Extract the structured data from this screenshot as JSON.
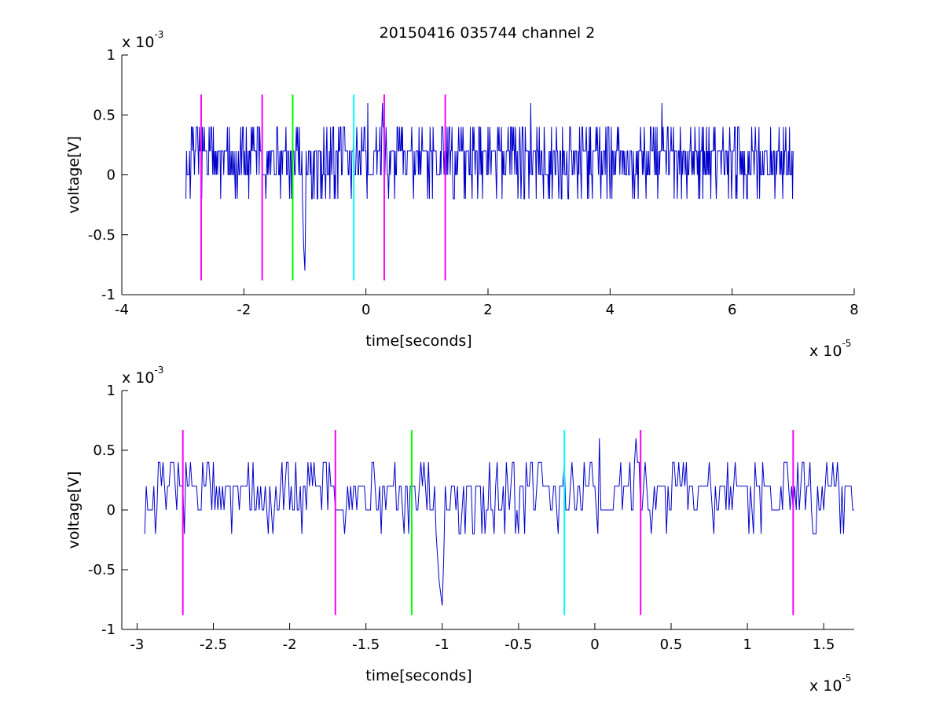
{
  "figure_title": "20150416 035744 channel 2",
  "colors": {
    "signal": "#0000cc",
    "magenta": "#ff00ff",
    "green": "#00ff00",
    "cyan": "#00ffff",
    "axes": "#000000",
    "background": "#ffffff"
  },
  "chart_data": [
    {
      "type": "line",
      "title": "20150416 035744 channel 2",
      "xlabel": "time[seconds]",
      "ylabel": "voltage[V]",
      "xlim": [
        -4e-05,
        8e-05
      ],
      "ylim": [
        -0.001,
        0.001
      ],
      "x_ticks": [
        "-4",
        "-2",
        "0",
        "2",
        "4",
        "6",
        "8"
      ],
      "y_ticks": [
        "1",
        "0.5",
        "0",
        "-0.5",
        "-1"
      ],
      "x_multiplier": {
        "base": "x 10",
        "exponent": "-5"
      },
      "y_multiplier": {
        "base": "x 10",
        "exponent": "-3"
      },
      "signal": {
        "x_start": -2.95e-05,
        "x_end": 7e-05,
        "levels_V": [
          -0.0002,
          0,
          0.0002,
          0.0004
        ],
        "min_V": -0.0008,
        "min_at": -1e-05,
        "max_V": 0.0006,
        "max_at": [
          2.7e-06,
          2.7e-05,
          4.85e-05
        ]
      },
      "markers": [
        {
          "x": -2.7e-05,
          "color": "magenta",
          "ymin": -0.00088,
          "ymax": 0.00067
        },
        {
          "x": -1.7e-05,
          "color": "magenta",
          "ymin": -0.00088,
          "ymax": 0.00067
        },
        {
          "x": -1.2e-05,
          "color": "green",
          "ymin": -0.00088,
          "ymax": 0.00067
        },
        {
          "x": -2e-06,
          "color": "cyan",
          "ymin": -0.00088,
          "ymax": 0.00067
        },
        {
          "x": 3e-06,
          "color": "magenta",
          "ymin": -0.00088,
          "ymax": 0.00067
        },
        {
          "x": 1.3e-05,
          "color": "magenta",
          "ymin": -0.00088,
          "ymax": 0.00067
        }
      ]
    },
    {
      "type": "line",
      "title": "",
      "xlabel": "time[seconds]",
      "ylabel": "voltage[V]",
      "xlim": [
        -3.1e-05,
        1.7e-05
      ],
      "ylim": [
        -0.001,
        0.001
      ],
      "x_ticks": [
        "-3",
        "-2.5",
        "-2",
        "-1.5",
        "-1",
        "-0.5",
        "0",
        "0.5",
        "1",
        "1.5"
      ],
      "y_ticks": [
        "1",
        "0.5",
        "0",
        "-0.5",
        "-1"
      ],
      "x_multiplier": {
        "base": "x 10",
        "exponent": "-5"
      },
      "y_multiplier": {
        "base": "x 10",
        "exponent": "-3"
      },
      "signal": {
        "x_start": -2.95e-05,
        "x_end": 1.7e-05,
        "levels_V": [
          -0.0002,
          0,
          0.0002,
          0.0004
        ],
        "min_V": -0.0008,
        "min_at": -1e-05,
        "max_V": 0.0006,
        "max_at": [
          3e-07
        ]
      },
      "markers": [
        {
          "x": -2.7e-05,
          "color": "magenta",
          "ymin": -0.00088,
          "ymax": 0.00067
        },
        {
          "x": -1.7e-05,
          "color": "magenta",
          "ymin": -0.00088,
          "ymax": 0.00067
        },
        {
          "x": -1.2e-05,
          "color": "green",
          "ymin": -0.00088,
          "ymax": 0.00067
        },
        {
          "x": -2e-06,
          "color": "cyan",
          "ymin": -0.00088,
          "ymax": 0.00067
        },
        {
          "x": 3e-06,
          "color": "magenta",
          "ymin": -0.00088,
          "ymax": 0.00067
        },
        {
          "x": 1.3e-05,
          "color": "magenta",
          "ymin": -0.00088,
          "ymax": 0.00067
        }
      ]
    }
  ]
}
